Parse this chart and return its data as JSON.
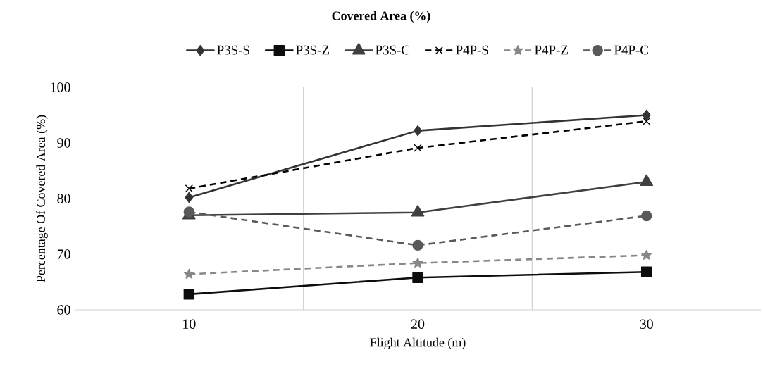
{
  "chart_data": {
    "type": "line",
    "title": "Covered Area (%)",
    "xlabel": "Flight Altitude (m)",
    "ylabel": "Percentage Of Covered Area (%)",
    "categories": [
      "10",
      "20",
      "30"
    ],
    "series": [
      {
        "name": "P3S-S",
        "color": "#333333",
        "marker": "diamond",
        "line_style": "solid",
        "values": [
          80.2,
          92.2,
          95.0
        ]
      },
      {
        "name": "P3S-Z",
        "color": "#0d0d0d",
        "marker": "square",
        "line_style": "solid",
        "values": [
          62.8,
          65.8,
          66.8
        ]
      },
      {
        "name": "P3S-C",
        "color": "#404040",
        "marker": "triangle",
        "line_style": "solid",
        "values": [
          77.0,
          77.5,
          83.0
        ]
      },
      {
        "name": "P4P-S",
        "color": "#000000",
        "marker": "cross",
        "line_style": "dashed",
        "values": [
          81.8,
          89.1,
          93.9
        ]
      },
      {
        "name": "P4P-Z",
        "color": "#878787",
        "marker": "star",
        "line_style": "dashed",
        "values": [
          66.4,
          68.4,
          69.8
        ]
      },
      {
        "name": "P4P-C",
        "color": "#595959",
        "marker": "circle",
        "line_style": "dashed",
        "values": [
          77.6,
          71.6,
          76.9
        ]
      }
    ],
    "ylim": [
      60,
      100
    ],
    "yticks": [
      60,
      70,
      80,
      90,
      100
    ],
    "grid": "x",
    "legend": "top"
  }
}
